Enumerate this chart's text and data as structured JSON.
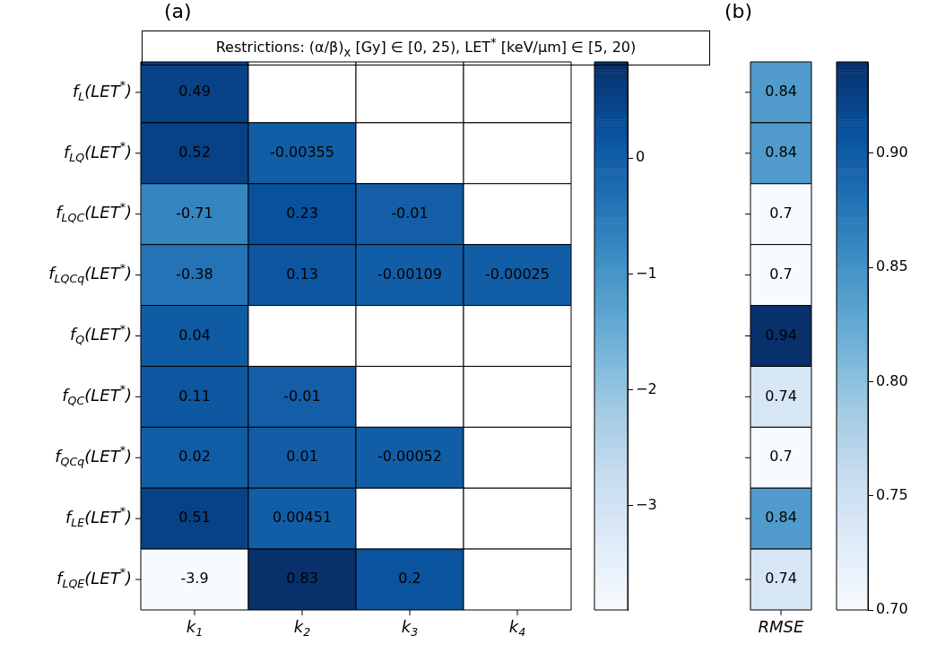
{
  "chart_data": [
    {
      "type": "heatmap",
      "title": "(a)",
      "subtitle": "Restrictions: (α/β)$_{x}$ [Gy] ∈ [0, 25), LET$^{*}$ [keV/μm] ∈ [5, 20)",
      "categories": [
        "k$_{1}$",
        "k$_{2}$",
        "k$_{3}$",
        "k$_{4}$"
      ],
      "y_categories": [
        "f$_{L}$(LET$^{*}$)",
        "f$_{LQ}$(LET$^{*}$)",
        "f$_{LQC}$(LET$^{*}$)",
        "f$_{LQCq}$(LET$^{*}$)",
        "f$_{Q}$(LET$^{*}$)",
        "f$_{QC}$(LET$^{*}$)",
        "f$_{QCq}$(LET$^{*}$)",
        "f$_{LE}$(LET$^{*}$)",
        "f$_{LQE}$(LET$^{*}$)"
      ],
      "cells": [
        [
          0.49,
          null,
          null,
          null
        ],
        [
          0.52,
          -0.00355,
          null,
          null
        ],
        [
          -0.71,
          0.23,
          -0.01,
          null
        ],
        [
          -0.38,
          0.13,
          -0.00109,
          -0.00025
        ],
        [
          0.04,
          null,
          null,
          null
        ],
        [
          0.11,
          -0.01,
          null,
          null
        ],
        [
          0.02,
          0.01,
          -0.00052,
          null
        ],
        [
          0.51,
          0.00451,
          null,
          null
        ],
        [
          -3.9,
          0.83,
          0.2,
          null
        ]
      ],
      "clim": [
        -3.9,
        0.83
      ],
      "cticks": [
        {
          "value": -3,
          "label": "−3"
        },
        {
          "value": -2,
          "label": "−2"
        },
        {
          "value": -1,
          "label": "−1"
        },
        0
      ],
      "data_labels": true
    },
    {
      "type": "heatmap",
      "title": "(b)",
      "categories": [
        "RMSE"
      ],
      "y_categories": [
        null,
        null,
        null,
        null,
        null,
        null,
        null,
        null,
        null
      ],
      "cells": [
        [
          0.84
        ],
        [
          0.84
        ],
        [
          0.7
        ],
        [
          0.7
        ],
        [
          0.94
        ],
        [
          0.74
        ],
        [
          0.7
        ],
        [
          0.84
        ],
        [
          0.74
        ]
      ],
      "clim": [
        0.7,
        0.94
      ],
      "cticks": [
        {
          "value": 0.7,
          "label": "0.70"
        },
        0.75,
        {
          "value": 0.8,
          "label": "0.80"
        },
        0.85,
        {
          "value": 0.9,
          "label": "0.90"
        }
      ],
      "data_labels": true,
      "tick_labels": "x"
    }
  ]
}
